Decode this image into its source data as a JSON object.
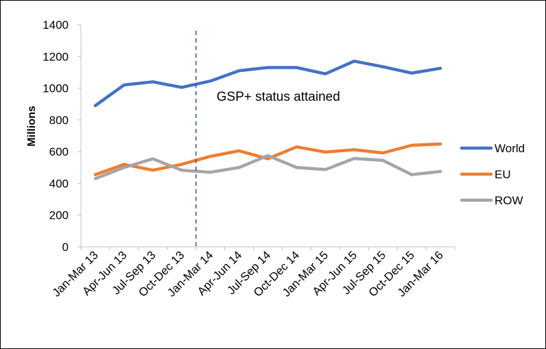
{
  "chart_data": {
    "type": "line",
    "title": "",
    "xlabel": "",
    "ylabel": "Millions",
    "ylim": [
      0,
      1400
    ],
    "yticks": [
      0,
      200,
      400,
      600,
      800,
      1000,
      1200,
      1400
    ],
    "grid": false,
    "legend_position": "right",
    "categories": [
      "Jan-Mar 13",
      "Apr-Jun 13",
      "Jul-Sep 13",
      "Oct-Dec 13",
      "Jan-Mar 14",
      "Apr-Jun 14",
      "Jul-Sep 14",
      "Oct-Dec 14",
      "Jan-Mar 15",
      "Apr-Jun 15",
      "Jul-Sep 15",
      "Oct-Dec 15",
      "Jan-Mar 16"
    ],
    "series": [
      {
        "name": "World",
        "color": "#4472C4",
        "values": [
          890,
          1020,
          1040,
          1005,
          1045,
          1110,
          1130,
          1130,
          1090,
          1170,
          1135,
          1095,
          1125
        ]
      },
      {
        "name": "EU",
        "color": "#ED7D31",
        "values": [
          455,
          520,
          483,
          520,
          570,
          605,
          555,
          630,
          597,
          612,
          592,
          640,
          648
        ]
      },
      {
        "name": "ROW",
        "color": "#A5A5A5",
        "values": [
          430,
          500,
          555,
          483,
          470,
          500,
          575,
          500,
          487,
          557,
          545,
          455,
          475
        ]
      }
    ],
    "annotations": [
      {
        "text": "GSP+ status attained",
        "type": "vertical-dashed-line",
        "between": [
          "Oct-Dec 13",
          "Jan-Mar 14"
        ],
        "color": "#2E5C9E"
      }
    ]
  }
}
